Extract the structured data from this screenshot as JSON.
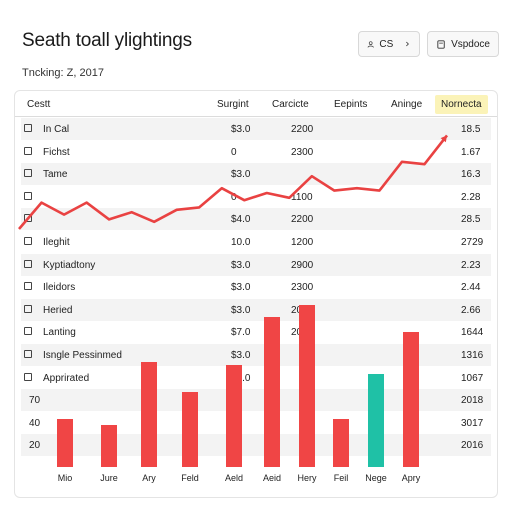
{
  "header": {
    "title": "Seath toall ylightings",
    "subtitle": "Tncking: Z, 2017",
    "btn_cs_label": "CS",
    "btn_vp_label": "Vspdoce"
  },
  "table": {
    "columns": [
      "Cestt",
      "Surgint",
      "Carcicte",
      "Eepints",
      "Aninge",
      "Nornecta"
    ],
    "rows": [
      {
        "name": "In Cal",
        "c1": "$3.0",
        "c2": "2200",
        "c4": "18.5",
        "checkbox": true
      },
      {
        "name": "Fichst",
        "c1": "0",
        "c2": "2300",
        "c4": "1.67",
        "checkbox": true
      },
      {
        "name": "Tame",
        "c1": "$3.0",
        "c2": "",
        "c4": "16.3",
        "checkbox": true
      },
      {
        "name": "",
        "c1": "0",
        "c2": "1100",
        "c4": "2.28",
        "checkbox": true
      },
      {
        "name": "",
        "c1": "$4.0",
        "c2": "2200",
        "c4": "28.5",
        "checkbox": true
      },
      {
        "name": "Ileghit",
        "c1": "10.0",
        "c2": "1200",
        "c4": "2729",
        "checkbox": true
      },
      {
        "name": "Kyptiadtony",
        "c1": "$3.0",
        "c2": "2900",
        "c4": "2.23",
        "checkbox": true
      },
      {
        "name": "Ileidors",
        "c1": "$3.0",
        "c2": "2300",
        "c4": "2.44",
        "checkbox": true
      },
      {
        "name": "Heried",
        "c1": "$3.0",
        "c2": "2000",
        "c4": "2.66",
        "checkbox": true
      },
      {
        "name": "Lanting",
        "c1": "$7.0",
        "c2": "2000",
        "c4": "1644",
        "checkbox": true
      },
      {
        "name": "Isngle Pessinmed",
        "c1": "$3.0",
        "c2": "",
        "c4": "1316",
        "checkbox": true
      },
      {
        "name": "Apprirated",
        "c1": "$3.0",
        "c2": "",
        "c4": "1067",
        "checkbox": true
      },
      {
        "name": "70",
        "c1": "",
        "c2": "",
        "c4": "2018",
        "checkbox": false
      },
      {
        "name": "40",
        "c1": "",
        "c2": "",
        "c4": "3017",
        "checkbox": false
      },
      {
        "name": "20",
        "c1": "",
        "c2": "",
        "c4": "2016",
        "checkbox": false
      }
    ]
  },
  "chart_data": {
    "type": "bar",
    "categories": [
      "Mio",
      "Jure",
      "Ary",
      "Feld",
      "Aeld",
      "Aeid",
      "Hery",
      "Feil",
      "Nege",
      "Apry"
    ],
    "values": [
      16,
      14,
      35,
      25,
      34,
      50,
      54,
      16,
      31,
      45
    ],
    "ylim": [
      0,
      60
    ],
    "colors": [
      "#f04545",
      "#f04545",
      "#f04545",
      "#f04545",
      "#f04545",
      "#f04545",
      "#f04545",
      "#f04545",
      "#1fc1a6",
      "#f04545"
    ],
    "line": {
      "color": "#e94242",
      "values": [
        5,
        16,
        11,
        16,
        9,
        12,
        8,
        13,
        14,
        22,
        17,
        20,
        18,
        27,
        21,
        22,
        21,
        33,
        32,
        44
      ],
      "ylim": [
        0,
        50
      ]
    }
  },
  "colors": {
    "accent_red": "#f04545",
    "accent_teal": "#1fc1a6",
    "highlight": "#fbf3b8"
  }
}
